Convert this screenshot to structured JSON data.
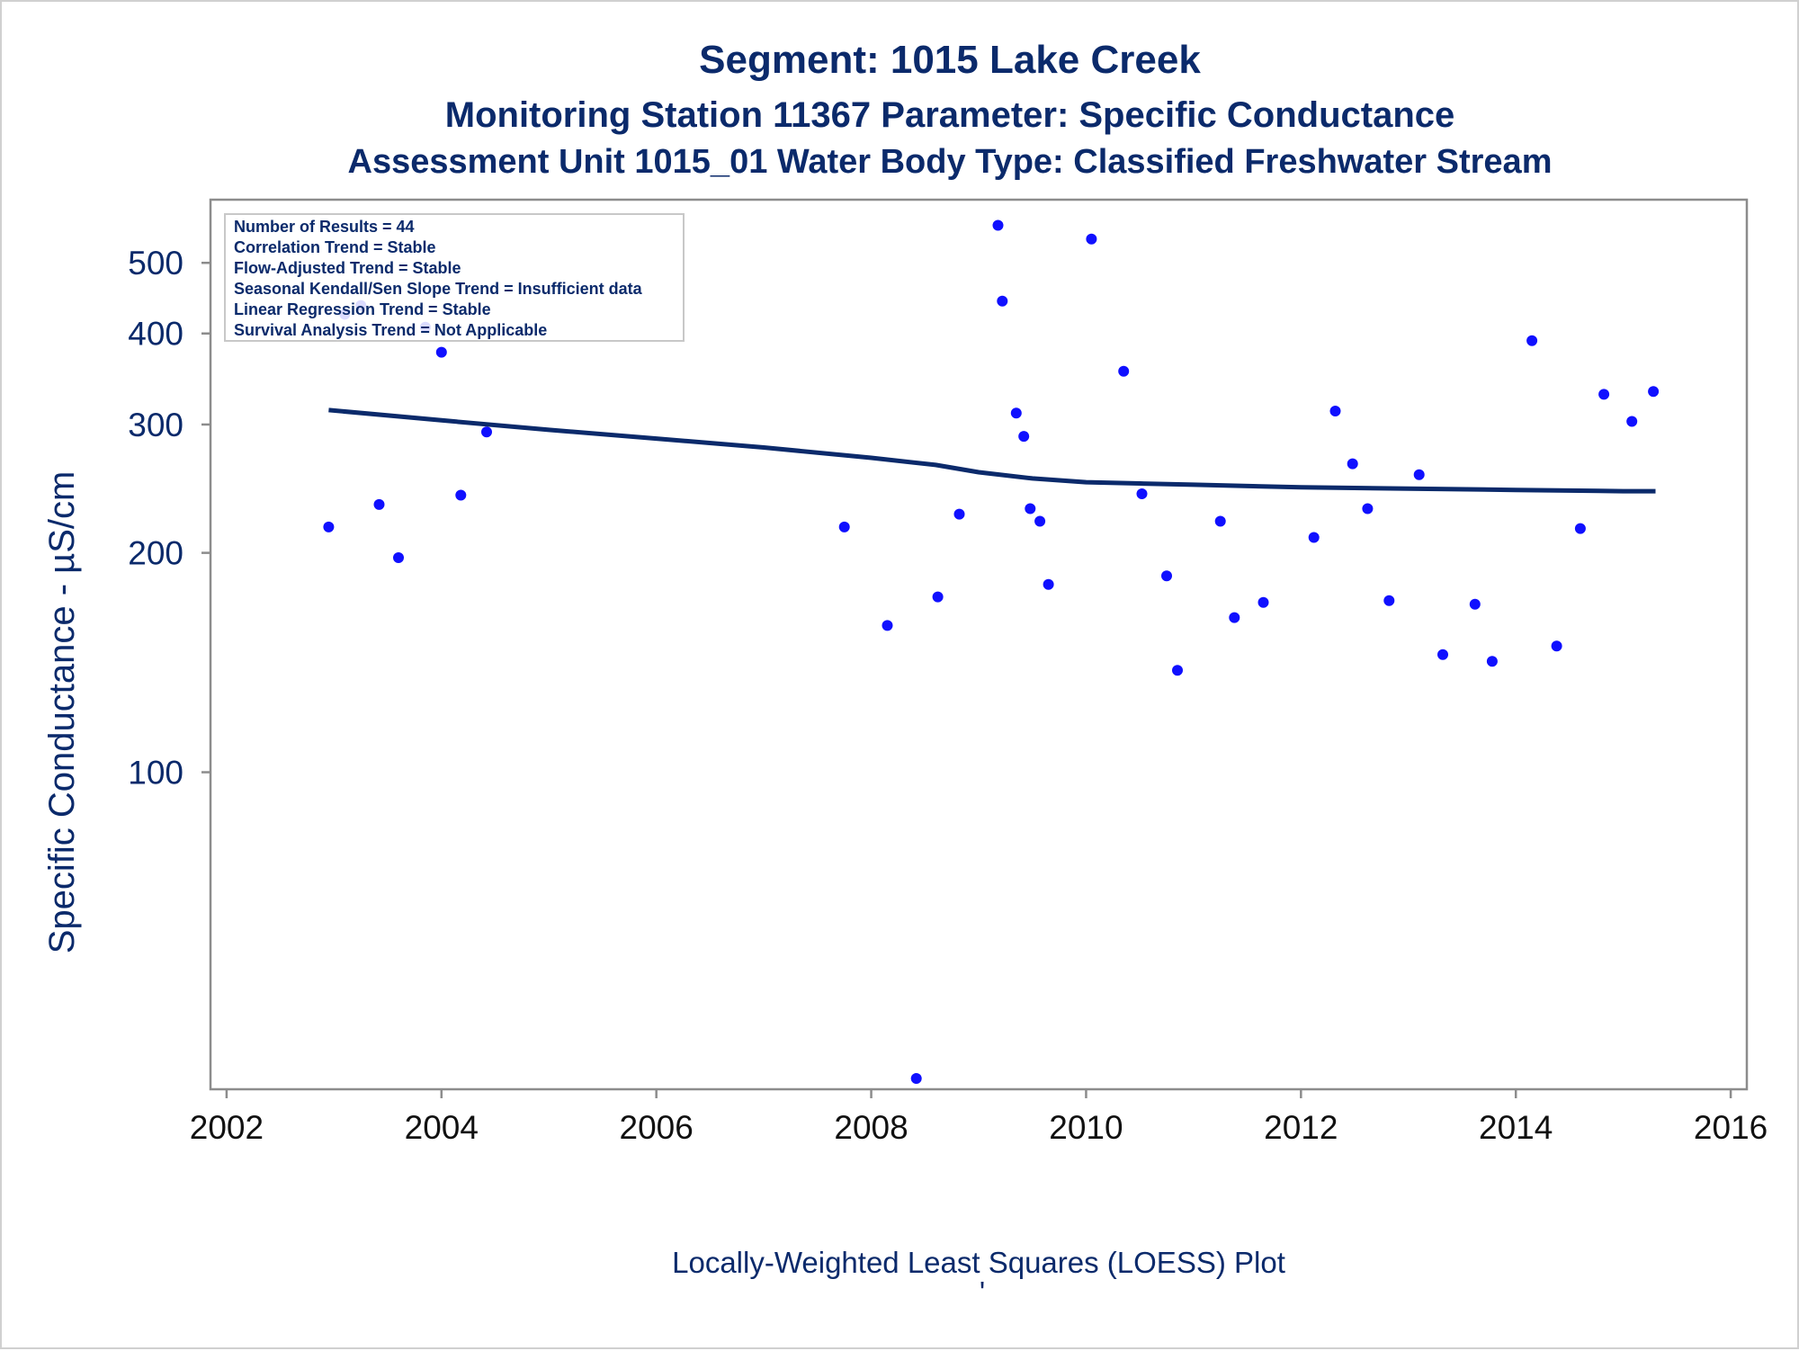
{
  "chart_data": {
    "type": "scatter",
    "title": "Segment: 1015  Lake Creek",
    "subtitle1": "Monitoring Station 11367 Parameter: Specific Conductance",
    "subtitle2": "Assessment Unit 1015_01   Water Body Type: Classified Freshwater Stream",
    "ylabel": "Specific Conductance -  µS/cm",
    "xlabel": "",
    "footnote": "Locally-Weighted Least Squares (LOESS) Plot",
    "footnote_mark": "'",
    "y_scale": "log",
    "ylim": [
      38,
      580
    ],
    "xlim": [
      2001.85,
      2016.15
    ],
    "x_ticks": [
      2002,
      2004,
      2006,
      2008,
      2010,
      2012,
      2014,
      2016
    ],
    "y_ticks": [
      100,
      200,
      300,
      400,
      500
    ],
    "grid": false,
    "info_box": [
      "Number of Results = 44",
      "Correlation Trend = Stable",
      "Flow-Adjusted Trend = Stable",
      "Seasonal Kendall/Sen Slope Trend = Insufficient data",
      "Linear Regression Trend = Stable",
      "Survival Analysis Trend = Not Applicable"
    ],
    "colors": {
      "points": "#1010ff",
      "loess": "#0b2a6b",
      "text": "#0b2a6b",
      "frame": "#8c8c8c"
    },
    "series": [
      {
        "type": "scatter",
        "points": [
          {
            "x": 2002.95,
            "y": 217
          },
          {
            "x": 2003.1,
            "y": 425
          },
          {
            "x": 2003.25,
            "y": 437
          },
          {
            "x": 2003.42,
            "y": 233
          },
          {
            "x": 2003.6,
            "y": 197
          },
          {
            "x": 2003.85,
            "y": 408
          },
          {
            "x": 2004.0,
            "y": 377
          },
          {
            "x": 2004.18,
            "y": 240
          },
          {
            "x": 2004.42,
            "y": 293
          },
          {
            "x": 2007.75,
            "y": 217
          },
          {
            "x": 2008.15,
            "y": 159
          },
          {
            "x": 2008.42,
            "y": 38
          },
          {
            "x": 2008.62,
            "y": 174
          },
          {
            "x": 2008.82,
            "y": 226
          },
          {
            "x": 2009.18,
            "y": 563
          },
          {
            "x": 2009.22,
            "y": 443
          },
          {
            "x": 2009.35,
            "y": 311
          },
          {
            "x": 2009.42,
            "y": 289
          },
          {
            "x": 2009.48,
            "y": 230
          },
          {
            "x": 2009.57,
            "y": 221
          },
          {
            "x": 2009.65,
            "y": 181
          },
          {
            "x": 2010.05,
            "y": 539
          },
          {
            "x": 2010.35,
            "y": 355
          },
          {
            "x": 2010.52,
            "y": 241
          },
          {
            "x": 2010.75,
            "y": 186
          },
          {
            "x": 2010.85,
            "y": 138
          },
          {
            "x": 2011.25,
            "y": 221
          },
          {
            "x": 2011.38,
            "y": 163
          },
          {
            "x": 2011.65,
            "y": 171
          },
          {
            "x": 2012.12,
            "y": 210
          },
          {
            "x": 2012.32,
            "y": 313
          },
          {
            "x": 2012.48,
            "y": 265
          },
          {
            "x": 2012.62,
            "y": 230
          },
          {
            "x": 2012.82,
            "y": 172
          },
          {
            "x": 2013.1,
            "y": 256
          },
          {
            "x": 2013.32,
            "y": 145
          },
          {
            "x": 2013.62,
            "y": 170
          },
          {
            "x": 2013.78,
            "y": 142
          },
          {
            "x": 2014.15,
            "y": 391
          },
          {
            "x": 2014.38,
            "y": 149
          },
          {
            "x": 2014.6,
            "y": 216
          },
          {
            "x": 2014.82,
            "y": 330
          },
          {
            "x": 2015.08,
            "y": 303
          },
          {
            "x": 2015.28,
            "y": 333
          }
        ]
      },
      {
        "type": "line",
        "points": [
          {
            "x": 2002.95,
            "y": 314
          },
          {
            "x": 2004.0,
            "y": 304
          },
          {
            "x": 2005.0,
            "y": 295
          },
          {
            "x": 2006.0,
            "y": 287
          },
          {
            "x": 2007.0,
            "y": 279
          },
          {
            "x": 2008.0,
            "y": 270
          },
          {
            "x": 2008.6,
            "y": 264
          },
          {
            "x": 2009.0,
            "y": 258
          },
          {
            "x": 2009.5,
            "y": 253
          },
          {
            "x": 2010.0,
            "y": 250
          },
          {
            "x": 2010.5,
            "y": 249
          },
          {
            "x": 2011.0,
            "y": 248
          },
          {
            "x": 2012.0,
            "y": 246
          },
          {
            "x": 2013.0,
            "y": 245
          },
          {
            "x": 2014.0,
            "y": 244
          },
          {
            "x": 2015.0,
            "y": 243
          },
          {
            "x": 2015.3,
            "y": 243
          }
        ]
      }
    ]
  }
}
